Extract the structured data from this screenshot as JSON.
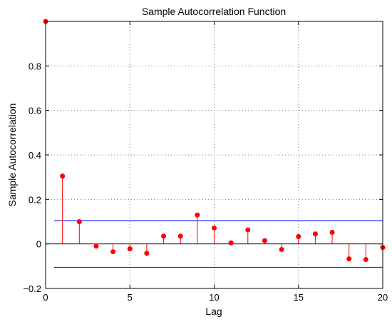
{
  "chart_data": {
    "type": "stem",
    "title": "Sample Autocorrelation Function",
    "xlabel": "Lag",
    "ylabel": "Sample Autocorrelation",
    "xlim": [
      0,
      20
    ],
    "ylim": [
      -0.2,
      1.0
    ],
    "xticks": [
      0,
      5,
      10,
      15,
      20
    ],
    "yticks": [
      -0.2,
      0,
      0.2,
      0.4,
      0.6,
      0.8
    ],
    "ytick_labels": [
      "−0.2",
      "0",
      "0.2",
      "0.4",
      "0.6",
      "0.8"
    ],
    "grid": true,
    "lags": [
      0,
      1,
      2,
      3,
      4,
      5,
      6,
      7,
      8,
      9,
      10,
      11,
      12,
      13,
      14,
      15,
      16,
      17,
      18,
      19,
      20
    ],
    "values": [
      1.0,
      0.305,
      0.1,
      -0.01,
      -0.035,
      -0.022,
      -0.042,
      0.035,
      0.035,
      0.13,
      0.072,
      0.005,
      0.063,
      0.015,
      -0.025,
      0.033,
      0.045,
      0.052,
      -0.067,
      -0.07,
      -0.016
    ],
    "confidence_bounds": [
      0.105,
      -0.105
    ],
    "colors": {
      "stem": "#ff0000",
      "bounds": "#0000ff",
      "grid": "#808080",
      "zero_line": "#000000"
    }
  }
}
